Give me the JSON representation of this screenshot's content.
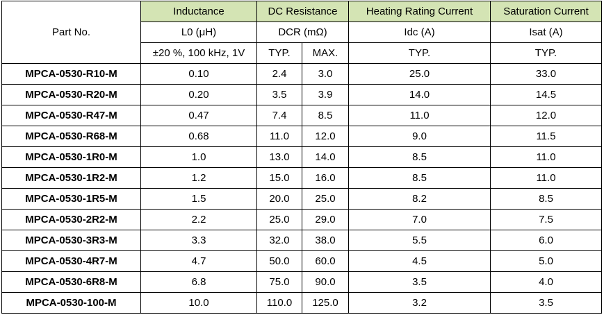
{
  "header": {
    "part_no": "Part No.",
    "inductance": "Inductance",
    "dc_resistance": "DC Resistance",
    "heating_current": "Heating Rating Current",
    "saturation_current": "Saturation Current",
    "l0": "L0 (μH)",
    "dcr": "DCR (mΩ)",
    "idc": "Idc (A)",
    "isat": "Isat (A)",
    "test_cond": "±20 %, 100 kHz, 1V",
    "dcr_typ": "TYP.",
    "dcr_max": "MAX.",
    "idc_typ": "TYP.",
    "isat_typ": "TYP."
  },
  "rows": [
    {
      "part": "MPCA-0530-R10-M",
      "l0": "0.10",
      "dcr_typ": "2.4",
      "dcr_max": "3.0",
      "idc": "25.0",
      "isat": "33.0"
    },
    {
      "part": "MPCA-0530-R20-M",
      "l0": "0.20",
      "dcr_typ": "3.5",
      "dcr_max": "3.9",
      "idc": "14.0",
      "isat": "14.5"
    },
    {
      "part": "MPCA-0530-R47-M",
      "l0": "0.47",
      "dcr_typ": "7.4",
      "dcr_max": "8.5",
      "idc": "11.0",
      "isat": "12.0"
    },
    {
      "part": "MPCA-0530-R68-M",
      "l0": "0.68",
      "dcr_typ": "11.0",
      "dcr_max": "12.0",
      "idc": "9.0",
      "isat": "11.5"
    },
    {
      "part": "MPCA-0530-1R0-M",
      "l0": "1.0",
      "dcr_typ": "13.0",
      "dcr_max": "14.0",
      "idc": "8.5",
      "isat": "11.0"
    },
    {
      "part": "MPCA-0530-1R2-M",
      "l0": "1.2",
      "dcr_typ": "15.0",
      "dcr_max": "16.0",
      "idc": "8.5",
      "isat": "11.0"
    },
    {
      "part": "MPCA-0530-1R5-M",
      "l0": "1.5",
      "dcr_typ": "20.0",
      "dcr_max": "25.0",
      "idc": "8.2",
      "isat": "8.5"
    },
    {
      "part": "MPCA-0530-2R2-M",
      "l0": "2.2",
      "dcr_typ": "25.0",
      "dcr_max": "29.0",
      "idc": "7.0",
      "isat": "7.5"
    },
    {
      "part": "MPCA-0530-3R3-M",
      "l0": "3.3",
      "dcr_typ": "32.0",
      "dcr_max": "38.0",
      "idc": "5.5",
      "isat": "6.0"
    },
    {
      "part": "MPCA-0530-4R7-M",
      "l0": "4.7",
      "dcr_typ": "50.0",
      "dcr_max": "60.0",
      "idc": "4.5",
      "isat": "5.0"
    },
    {
      "part": "MPCA-0530-6R8-M",
      "l0": "6.8",
      "dcr_typ": "75.0",
      "dcr_max": "90.0",
      "idc": "3.5",
      "isat": "4.0"
    },
    {
      "part": "MPCA-0530-100-M",
      "l0": "10.0",
      "dcr_typ": "110.0",
      "dcr_max": "125.0",
      "idc": "3.2",
      "isat": "3.5"
    }
  ],
  "colors": {
    "header_green": "#d4e4b4"
  }
}
